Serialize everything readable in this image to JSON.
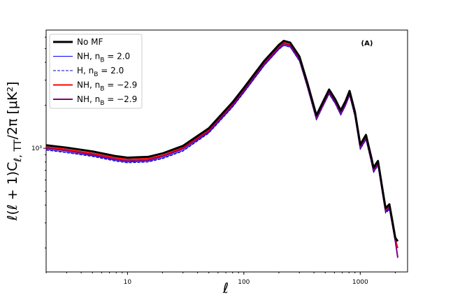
{
  "chart_data": {
    "type": "line",
    "xlabel": "ℓ",
    "ylabel": "ℓ(ℓ + 1)C_{ℓ, TT}/2π [μK²]",
    "annotation": "(A)",
    "xscale": "log",
    "yscale": "log",
    "xlim": [
      2,
      2550
    ],
    "ylim": [
      136,
      6730
    ],
    "xticks": [
      {
        "value": 10,
        "label": "10"
      },
      {
        "value": 100,
        "label": "100"
      },
      {
        "value": 1000,
        "label": "1000"
      }
    ],
    "xminorticks": [
      2,
      3,
      4,
      5,
      6,
      7,
      8,
      9,
      20,
      30,
      40,
      50,
      60,
      70,
      80,
      90,
      200,
      300,
      400,
      500,
      600,
      700,
      800,
      900,
      2000
    ],
    "yticks": [
      {
        "value": 1000,
        "label": "10³"
      }
    ],
    "yminorticks": [
      200,
      300,
      400,
      500,
      600,
      700,
      800,
      900,
      2000,
      3000,
      4000,
      5000,
      6000
    ],
    "legend": "upper left",
    "x": [
      2,
      3,
      5,
      8,
      10,
      15,
      20,
      30,
      50,
      80,
      100,
      150,
      200,
      220,
      250,
      300,
      350,
      420,
      470,
      540,
      610,
      680,
      750,
      810,
      900,
      1000,
      1120,
      1250,
      1300,
      1420,
      1550,
      1650,
      1780,
      1900,
      2000,
      2100
    ],
    "series": [
      {
        "name": "No MF",
        "color": "#000000",
        "linewidth": 3,
        "linestyle": "solid",
        "values": [
          1050,
          1010,
          950,
          880,
          860,
          870,
          920,
          1040,
          1380,
          2100,
          2650,
          4100,
          5300,
          5650,
          5500,
          4400,
          2900,
          1700,
          2050,
          2580,
          2200,
          1840,
          2150,
          2520,
          1800,
          1060,
          1240,
          850,
          730,
          815,
          520,
          380,
          405,
          300,
          236,
          223
        ]
      },
      {
        "name": "NH, n_B = 2.0",
        "color": "#0000ff",
        "linewidth": 1,
        "linestyle": "solid",
        "values": [
          980,
          940,
          885,
          820,
          800,
          810,
          855,
          965,
          1285,
          1950,
          2460,
          3810,
          4930,
          5250,
          5120,
          4090,
          2700,
          1580,
          1910,
          2400,
          2050,
          1710,
          2000,
          2340,
          1670,
          985,
          1150,
          790,
          680,
          760,
          485,
          355,
          375,
          280,
          220,
          170
        ]
      },
      {
        "name": "H, n_B = 2.0",
        "color": "#0000cc",
        "linewidth": 1,
        "linestyle": "dashed",
        "values": [
          970,
          930,
          875,
          810,
          790,
          800,
          845,
          955,
          1275,
          1940,
          2450,
          3800,
          4920,
          5240,
          5110,
          4080,
          2690,
          1575,
          1905,
          2395,
          2045,
          1705,
          1995,
          2335,
          1665,
          980,
          1145,
          785,
          675,
          755,
          480,
          350,
          372,
          278,
          218,
          175
        ]
      },
      {
        "name": "NH, n_B = −2.9",
        "color": "#ff0000",
        "linewidth": 2,
        "linestyle": "solid",
        "values": [
          1020,
          980,
          920,
          855,
          835,
          845,
          890,
          1010,
          1340,
          2040,
          2570,
          3980,
          5140,
          5480,
          5330,
          4270,
          2810,
          1650,
          1990,
          2500,
          2130,
          1785,
          2085,
          2445,
          1745,
          1030,
          1200,
          825,
          710,
          790,
          505,
          368,
          395,
          292,
          230,
          200
        ]
      },
      {
        "name": "NH, n_B = −2.9",
        "color": "#800080",
        "linewidth": 2,
        "linestyle": "solid",
        "values": [
          1000,
          960,
          900,
          835,
          815,
          825,
          875,
          990,
          1310,
          2000,
          2520,
          3900,
          5030,
          5370,
          5220,
          4180,
          2750,
          1615,
          1950,
          2450,
          2090,
          1750,
          2040,
          2390,
          1710,
          1005,
          1175,
          805,
          695,
          775,
          495,
          362,
          385,
          285,
          225,
          172
        ]
      }
    ]
  }
}
